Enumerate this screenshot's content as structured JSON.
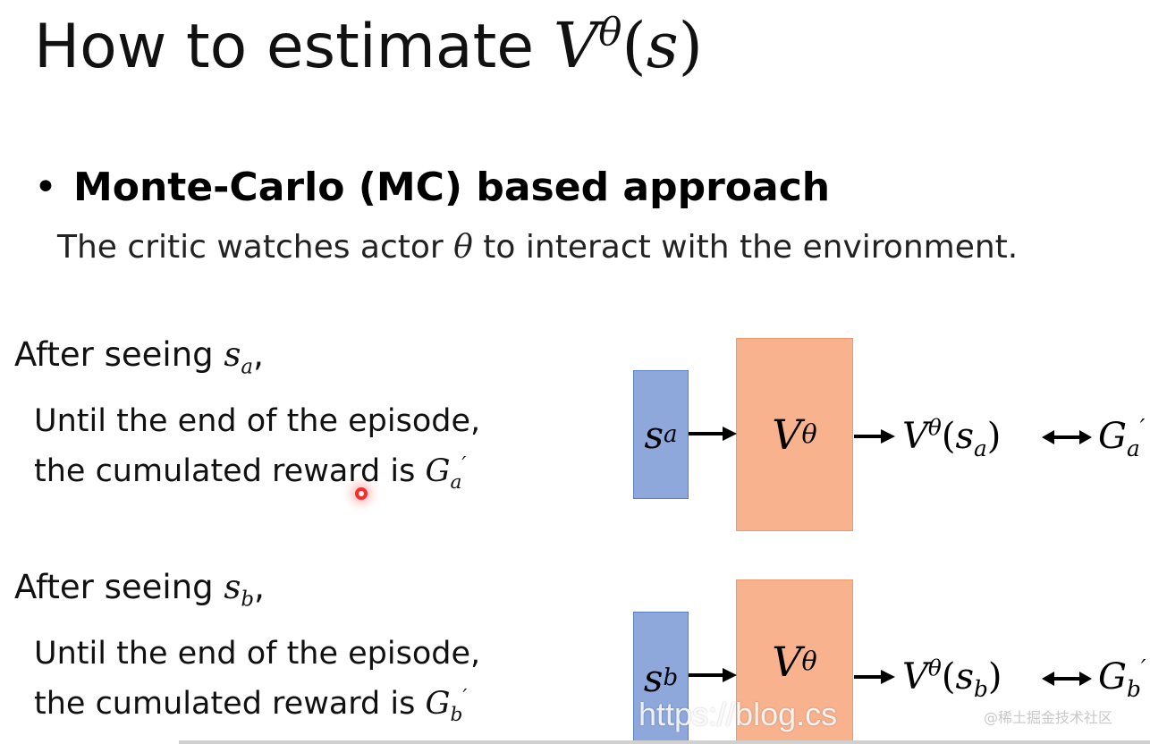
{
  "slide": {
    "title_text": "How to estimate ",
    "title_V": "V",
    "title_theta": "θ",
    "title_open": "(",
    "title_s": "s",
    "title_close": ")",
    "bullet": "Monte-Carlo (MC) based approach",
    "desc_pre": "The critic watches actor ",
    "desc_theta": "θ",
    "desc_post": " to interact with the environment."
  },
  "sections": [
    {
      "head_pre": "After seeing ",
      "state": "s",
      "state_sub": "a",
      "head_post": ",",
      "line1": "Until the end of the episode,",
      "line2_pre": "the cumulated reward is ",
      "reward": "G",
      "reward_sub": "a",
      "reward_prime": "′",
      "input_label": "s",
      "input_sub": "a",
      "box_V": "V",
      "box_theta": "θ",
      "out_V": "V",
      "out_theta": "θ",
      "out_open": "(",
      "out_s": "s",
      "out_sub": "a",
      "out_close": ")",
      "cmp_G": "G",
      "cmp_sub": "a",
      "cmp_prime": "′"
    },
    {
      "head_pre": "After seeing ",
      "state": "s",
      "state_sub": "b",
      "head_post": ",",
      "line1": "Until the end of the episode,",
      "line2_pre": "the cumulated reward is ",
      "reward": "G",
      "reward_sub": "b",
      "reward_prime": "′",
      "input_label": "s",
      "input_sub": "b",
      "box_V": "V",
      "box_theta": "θ",
      "out_V": "V",
      "out_theta": "θ",
      "out_open": "(",
      "out_s": "s",
      "out_sub": "b",
      "out_close": ")",
      "cmp_G": "G",
      "cmp_sub": "b",
      "cmp_prime": "′"
    }
  ],
  "watermark": {
    "url": "https://blog.cs",
    "site": "@稀土掘金技术社区"
  },
  "colors": {
    "input_box": "#8ea8dc",
    "value_box": "#f9b28e"
  }
}
